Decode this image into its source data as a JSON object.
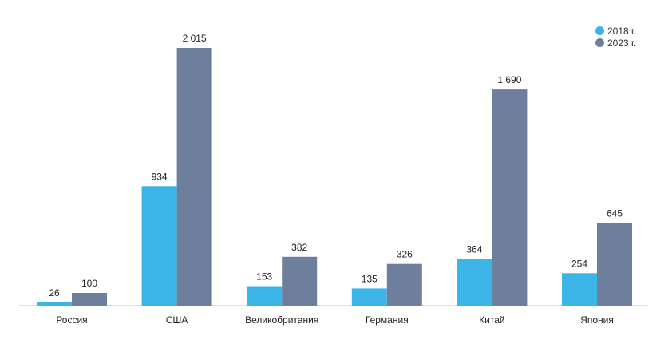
{
  "chart_data": {
    "type": "bar",
    "title": "",
    "xlabel": "",
    "ylabel": "",
    "categories": [
      "Россия",
      "США",
      "Великобритания",
      "Германия",
      "Китай",
      "Япония"
    ],
    "series": [
      {
        "name": "2018 г.",
        "values": [
          26,
          934,
          153,
          135,
          364,
          254
        ],
        "labels": [
          "26",
          "934",
          "153",
          "135",
          "364",
          "254"
        ],
        "color": "#3bb5e8"
      },
      {
        "name": "2023 г.",
        "values": [
          100,
          2015,
          382,
          326,
          1690,
          645
        ],
        "labels": [
          "100",
          "2 015",
          "382",
          "326",
          "1 690",
          "645"
        ],
        "color": "#6e7f9c"
      }
    ],
    "ylim": [
      0,
      2015
    ],
    "grid": false,
    "legend_position": "top-right"
  }
}
